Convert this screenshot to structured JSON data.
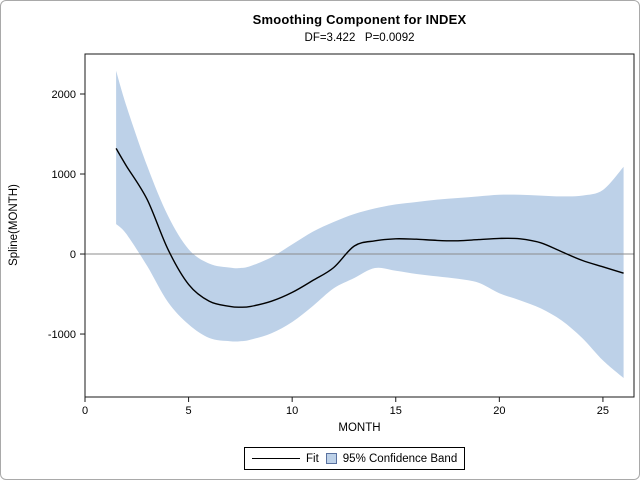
{
  "figure": {
    "title": "Smoothing Component for INDEX",
    "subtitle": "DF=3.422   P=0.0092"
  },
  "chart_data": {
    "type": "line",
    "title": "Smoothing Component for INDEX",
    "subtitle": "DF=3.422   P=0.0092",
    "xlabel": "MONTH",
    "ylabel": "Spline(MONTH)",
    "xlim": [
      0,
      26.5
    ],
    "ylim": [
      -1787,
      2500
    ],
    "x_ticks": [
      0,
      5,
      10,
      15,
      20,
      25
    ],
    "y_ticks": [
      -1000,
      0,
      1000,
      2000
    ],
    "reference_line_y": 0,
    "grid": false,
    "x": [
      1.5,
      2,
      3,
      4,
      5,
      6,
      7,
      7.5,
      8,
      9,
      10,
      11,
      12,
      13,
      14,
      15,
      16,
      17,
      18,
      19,
      20,
      21,
      22,
      23,
      24,
      25,
      26
    ],
    "series": [
      {
        "name": "Fit",
        "type": "line",
        "color": "#000000",
        "values": [
          1320,
          1100,
          680,
          60,
          -380,
          -590,
          -655,
          -665,
          -655,
          -590,
          -480,
          -330,
          -170,
          100,
          165,
          190,
          185,
          170,
          165,
          180,
          195,
          190,
          140,
          30,
          -80,
          -160,
          -240
        ]
      },
      {
        "name": "95% Confidence Band",
        "type": "band",
        "fill": "#bdd1e8",
        "upper": [
          2290,
          1850,
          1100,
          480,
          60,
          -120,
          -170,
          -175,
          -150,
          -40,
          120,
          280,
          400,
          500,
          570,
          620,
          650,
          680,
          700,
          720,
          740,
          740,
          730,
          720,
          730,
          800,
          1090
        ],
        "lower": [
          375,
          250,
          -150,
          -600,
          -880,
          -1050,
          -1090,
          -1090,
          -1070,
          -990,
          -850,
          -650,
          -430,
          -300,
          -175,
          -210,
          -250,
          -280,
          -310,
          -360,
          -490,
          -580,
          -680,
          -830,
          -1050,
          -1330,
          -1550
        ]
      }
    ],
    "legend": {
      "position": "bottom",
      "entries": [
        {
          "label": "Fit",
          "swatch": "line"
        },
        {
          "label": "95% Confidence Band",
          "swatch": "box"
        }
      ]
    }
  },
  "colors": {
    "band_fill": "#bdd1e8",
    "band_swatch_border": "#5a72a0",
    "fit_line": "#000000",
    "reference_line": "#8c8c8c",
    "plot_frame": "#1a1a1a",
    "figure_border": "#a9a9a9",
    "text": "#000000"
  }
}
